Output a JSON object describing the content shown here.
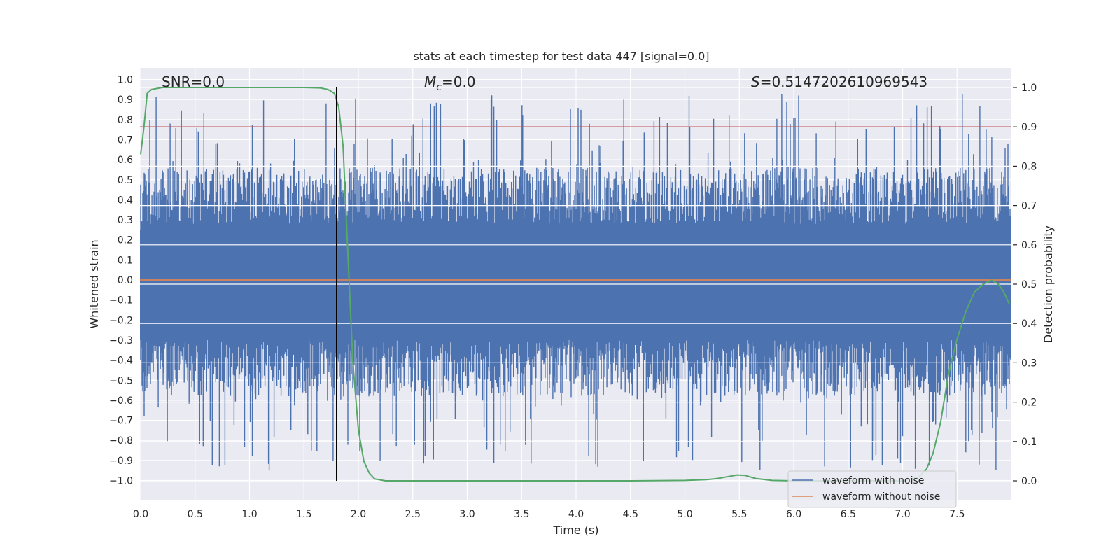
{
  "chart_data": {
    "type": "line",
    "title": "stats at each timestep for test data 447 [signal=0.0]",
    "xlabel": "Time (s)",
    "ylabel_left": "Whitened strain",
    "ylabel_right": "Detection probability",
    "xlim": [
      0.0,
      8.0
    ],
    "ylim_left": [
      -1.0,
      1.0
    ],
    "ylim_right": [
      0.0,
      1.0
    ],
    "x_ticks": [
      "0.0",
      "0.5",
      "1.0",
      "1.5",
      "2.0",
      "2.5",
      "3.0",
      "3.5",
      "4.0",
      "4.5",
      "5.0",
      "5.5",
      "6.0",
      "6.5",
      "7.0",
      "7.5"
    ],
    "y_left_ticks": [
      "1.0",
      "0.9",
      "0.8",
      "0.7",
      "0.6",
      "0.5",
      "0.4",
      "0.3",
      "0.2",
      "0.1",
      "0.0",
      "−0.1",
      "−0.2",
      "−0.3",
      "−0.4",
      "−0.5",
      "−0.6",
      "−0.7",
      "−0.8",
      "−0.9",
      "−1.0"
    ],
    "y_right_ticks": [
      "1.0",
      "0.9",
      "0.8",
      "0.7",
      "0.6",
      "0.5",
      "0.4",
      "0.3",
      "0.2",
      "0.1",
      "0.0"
    ],
    "grid": true,
    "legend_placement": "lower-right",
    "annotations": {
      "snr": "SNR=0.0",
      "mc_symbol": "M",
      "mc_sub": "c",
      "mc_value": "=0.0",
      "s_symbol": "S",
      "s_value": "=0.5147202610969543"
    },
    "series": [
      {
        "name": "waveform with noise",
        "color": "#4c72b0",
        "kind": "noise-strain",
        "envelope_peak_left": 0.96,
        "envelope_peak_min": -1.0
      },
      {
        "name": "waveform without noise",
        "color": "#dd8452",
        "kind": "constant",
        "value_left": 0.0
      },
      {
        "kind": "detection-probability",
        "color": "#55a868",
        "x": [
          0.0,
          0.03,
          0.06,
          0.1,
          0.2,
          0.5,
          1.0,
          1.5,
          1.65,
          1.72,
          1.78,
          1.82,
          1.86,
          1.9,
          1.95,
          2.0,
          2.05,
          2.1,
          2.15,
          2.25,
          2.5,
          3.0,
          3.5,
          4.0,
          4.5,
          5.0,
          5.2,
          5.3,
          5.4,
          5.48,
          5.55,
          5.65,
          5.8,
          6.0,
          6.5,
          7.0,
          7.15,
          7.22,
          7.28,
          7.35,
          7.42,
          7.5,
          7.58,
          7.66,
          7.74,
          7.82,
          7.88,
          7.93,
          7.98
        ],
        "values": [
          0.83,
          0.9,
          0.985,
          0.995,
          1.0,
          1.0,
          1.0,
          1.0,
          0.999,
          0.995,
          0.985,
          0.95,
          0.85,
          0.6,
          0.3,
          0.13,
          0.05,
          0.02,
          0.005,
          0.0,
          0.0,
          0.0,
          0.0,
          0.0,
          0.0,
          0.001,
          0.003,
          0.006,
          0.011,
          0.015,
          0.014,
          0.006,
          0.001,
          0.0,
          0.0,
          0.0,
          0.01,
          0.03,
          0.07,
          0.15,
          0.27,
          0.36,
          0.43,
          0.48,
          0.5,
          0.51,
          0.5,
          0.48,
          0.45
        ]
      },
      {
        "kind": "threshold",
        "color": "#c44e52",
        "value_right": 0.9
      },
      {
        "kind": "event-marker",
        "color": "#000000",
        "x": 1.8
      }
    ],
    "legend": [
      {
        "label": "waveform with noise",
        "color": "#4c72b0"
      },
      {
        "label": "waveform without noise",
        "color": "#dd8452"
      }
    ]
  }
}
